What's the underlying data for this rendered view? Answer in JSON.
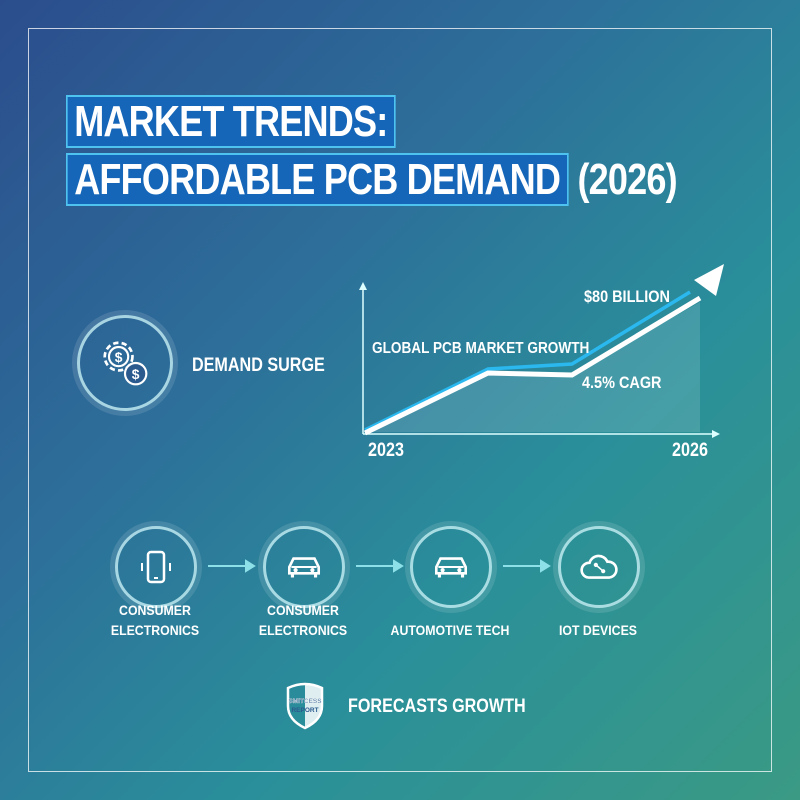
{
  "title": {
    "line1": "MARKET TRENDS:",
    "line2": "AFFORDABLE PCB DEMAND",
    "line2_suffix": "(2026)"
  },
  "demand": {
    "label": "DEMAND SURGE",
    "icon": "gear-dollar-icon"
  },
  "chart": {
    "label": "GLOBAL PCB MARKET GROWTH",
    "value_label": "$80 BILLION",
    "cagr_label": "4.5% CAGR",
    "x_start": "2023",
    "x_end": "2026"
  },
  "flow": [
    {
      "label1": "CONSUMER",
      "label2": "ELECTRONICS",
      "icon": "smartphone-icon"
    },
    {
      "label1": "CONSUMER",
      "label2": "ELECTRONICS",
      "icon": "car-icon"
    },
    {
      "label1": "AUTOMOTIVE TECH",
      "label2": "",
      "icon": "car-icon"
    },
    {
      "label1": "IOT DEVICES",
      "label2": "",
      "icon": "cloud-network-icon"
    }
  ],
  "footer": {
    "label": "FORECASTS GROWTH",
    "logo_text": "SMITCESS REPORT"
  },
  "colors": {
    "accent": "#4fc3f0",
    "title_box": "#1566b8"
  }
}
